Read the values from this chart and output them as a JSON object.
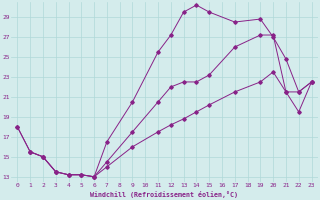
{
  "xlabel": "Windchill (Refroidissement éolien,°C)",
  "xlim": [
    -0.5,
    23.5
  ],
  "ylim": [
    12.5,
    30.5
  ],
  "yticks": [
    13,
    15,
    17,
    19,
    21,
    23,
    25,
    27,
    29
  ],
  "xticks": [
    0,
    1,
    2,
    3,
    4,
    5,
    6,
    7,
    8,
    9,
    10,
    11,
    12,
    13,
    14,
    15,
    16,
    17,
    18,
    19,
    20,
    21,
    22,
    23
  ],
  "bg_color": "#d4ecec",
  "line_color": "#882288",
  "grid_color": "#b0d8d8",
  "line1_x": [
    0,
    1,
    2,
    3,
    4,
    5,
    6,
    7,
    9,
    11,
    12,
    13,
    14,
    15,
    17,
    19,
    20,
    21,
    22,
    23
  ],
  "line1_y": [
    18.0,
    15.5,
    15.0,
    13.5,
    13.2,
    13.2,
    13.0,
    16.5,
    20.5,
    25.5,
    27.2,
    29.5,
    30.2,
    29.5,
    28.5,
    28.8,
    27.0,
    24.8,
    21.5,
    22.5
  ],
  "line2_x": [
    0,
    1,
    2,
    3,
    4,
    5,
    6,
    7,
    9,
    11,
    12,
    13,
    14,
    15,
    17,
    19,
    20,
    21,
    22,
    23
  ],
  "line2_y": [
    18.0,
    15.5,
    15.0,
    13.5,
    13.2,
    13.2,
    13.0,
    14.5,
    17.5,
    20.5,
    22.0,
    22.5,
    22.5,
    23.2,
    26.0,
    27.2,
    27.2,
    21.5,
    19.5,
    22.5
  ],
  "line3_x": [
    1,
    2,
    3,
    4,
    5,
    6,
    7,
    9,
    11,
    12,
    13,
    14,
    15,
    17,
    19,
    20,
    21,
    22,
    23
  ],
  "line3_y": [
    15.5,
    15.0,
    13.5,
    13.2,
    13.2,
    13.0,
    14.0,
    16.0,
    17.5,
    18.2,
    18.8,
    19.5,
    20.2,
    21.5,
    22.5,
    23.5,
    21.5,
    21.5,
    22.5
  ]
}
